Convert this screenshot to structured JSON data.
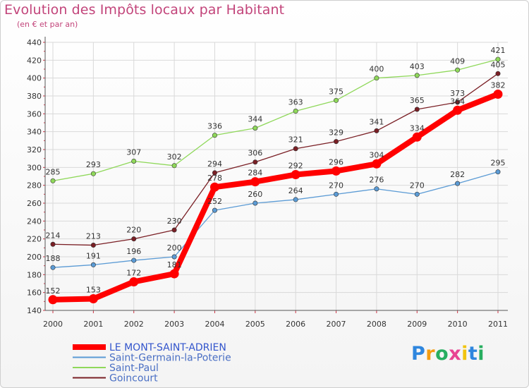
{
  "title": "Evolution des Impôts locaux par Habitant",
  "subtitle": "(en € et par an)",
  "logo_text": "Proxiti",
  "chart_data": {
    "type": "line",
    "title": "Evolution des Impôts locaux par Habitant",
    "subtitle": "(en € et par an)",
    "xlabel": "",
    "ylabel": "",
    "ylim": [
      140,
      440
    ],
    "ytick_step": 20,
    "grid": true,
    "legend_position": "bottom-left",
    "categories": [
      "2000",
      "2001",
      "2002",
      "2003",
      "2004",
      "2005",
      "2006",
      "2007",
      "2008",
      "2009",
      "2010",
      "2011"
    ],
    "series": [
      {
        "name": "LE MONT-SAINT-ADRIEN",
        "color": "#ff0000",
        "values": [
          152,
          153,
          172,
          181,
          278,
          284,
          292,
          296,
          304,
          334,
          364,
          382
        ]
      },
      {
        "name": "Saint-Germain-la-Poterie",
        "color": "#5b9bd5",
        "values": [
          188,
          191,
          196,
          200,
          252,
          260,
          264,
          270,
          276,
          270,
          282,
          295
        ]
      },
      {
        "name": "Saint-Paul",
        "color": "#8fd85a",
        "values": [
          285,
          293,
          307,
          302,
          336,
          344,
          363,
          375,
          400,
          403,
          409,
          421
        ]
      },
      {
        "name": "Goincourt",
        "color": "#7a1f25",
        "values": [
          214,
          213,
          220,
          230,
          294,
          306,
          321,
          329,
          341,
          365,
          373,
          405
        ]
      }
    ]
  }
}
